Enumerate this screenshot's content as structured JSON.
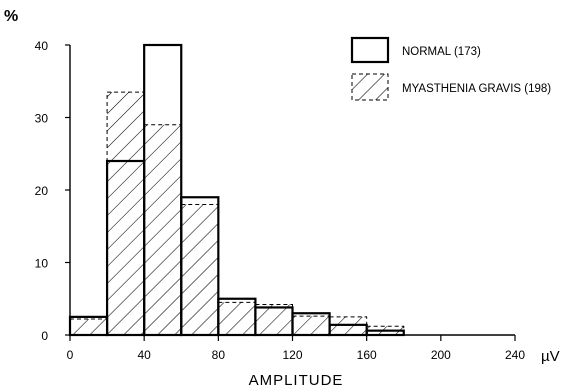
{
  "chart_data": {
    "type": "bar",
    "ylabel": "%",
    "xlabel": "AMPLITUDE",
    "x_unit": "µV",
    "x_ticks": [
      0,
      40,
      80,
      120,
      160,
      200,
      240
    ],
    "y_ticks": [
      0,
      10,
      20,
      30,
      40
    ],
    "xlim": [
      0,
      240
    ],
    "ylim": [
      0,
      40
    ],
    "bin_width": 20,
    "bin_starts": [
      0,
      20,
      40,
      60,
      80,
      100,
      120,
      140,
      160
    ],
    "series": [
      {
        "name": "NORMAL (173)",
        "style": "outline",
        "values": [
          2.5,
          24,
          40,
          19,
          5,
          3.8,
          3,
          1.4,
          0.6
        ]
      },
      {
        "name": "MYASTHENIA GRAVIS (198)",
        "style": "hatched-dashed",
        "values": [
          2.2,
          33.5,
          29,
          18,
          4.5,
          4.2,
          2.6,
          2.5,
          1.2
        ]
      }
    ],
    "legend_position": "top-right",
    "grid": false
  }
}
